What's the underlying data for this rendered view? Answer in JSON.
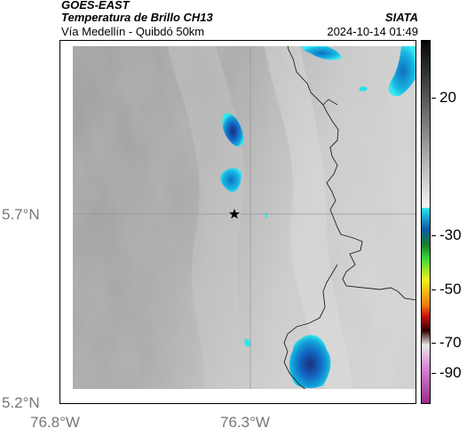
{
  "header": {
    "satellite": "GOES-EAST",
    "product": "Temperatura de Brillo CH13",
    "route": "Vía Medellín - Quibdó 50km",
    "agency": "SIATA",
    "timestamp": "2024-10-14 01:49"
  },
  "axes": {
    "lat_labels": [
      "5.7°N",
      "5.2°N"
    ],
    "lon_labels": [
      "76.8°W",
      "76.3°W"
    ]
  },
  "colorbar": {
    "labels": [
      "20",
      "-30",
      "-50",
      "-70",
      "-90"
    ]
  },
  "marker": {
    "type": "star-icon"
  },
  "colors": {
    "cloud_cold": "#1a3f8c",
    "cloud_mid": "#13a6d9",
    "cloud_edge": "#26e6f0",
    "border_line": "#222222",
    "grid_line": "#999999"
  }
}
